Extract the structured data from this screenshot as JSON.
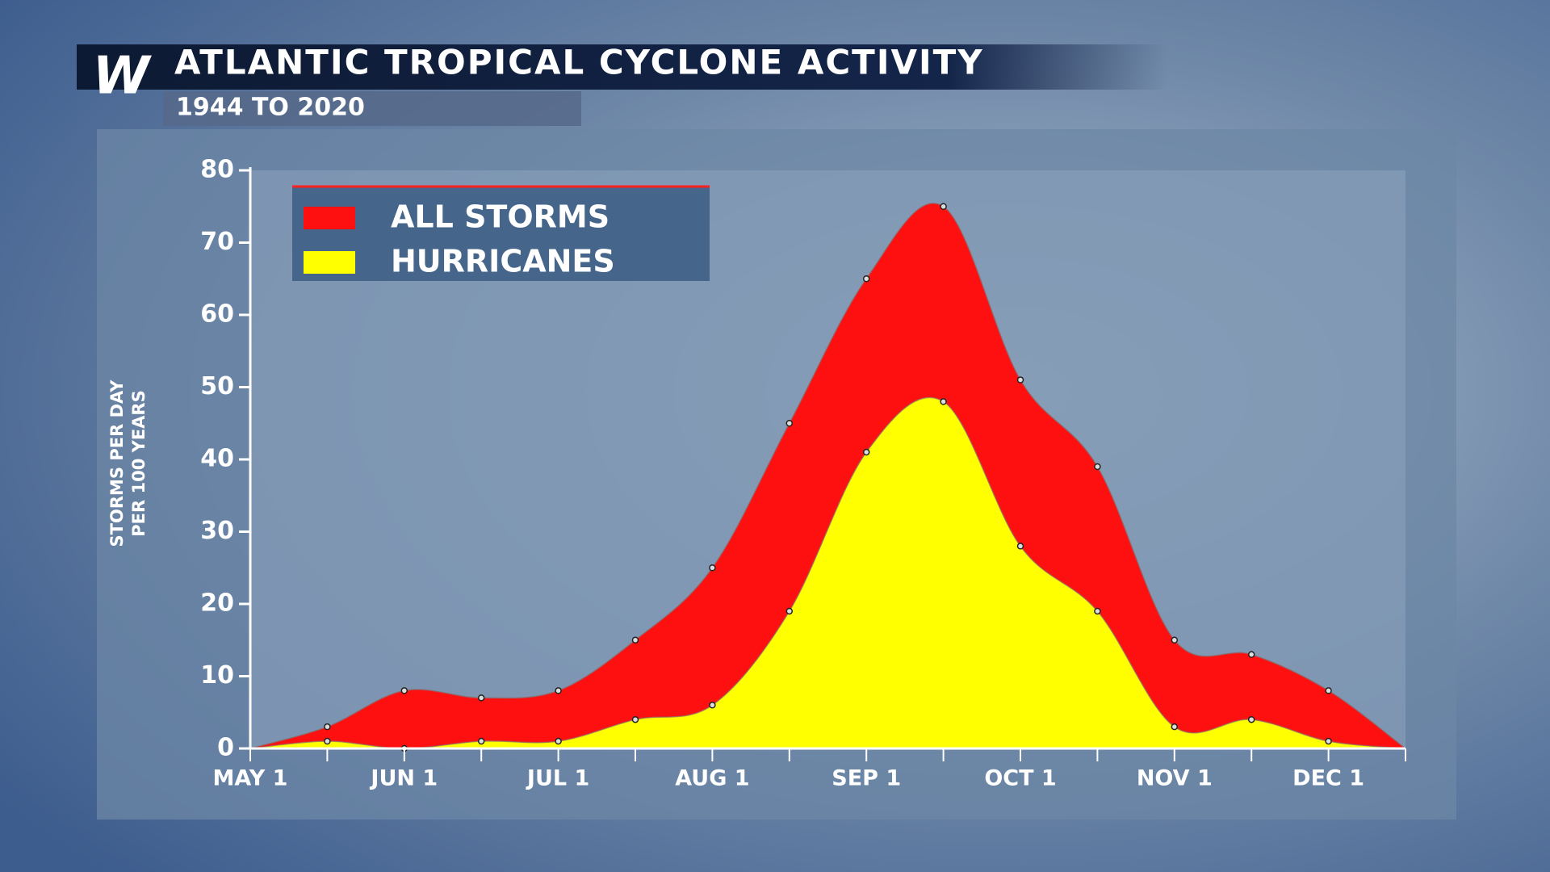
{
  "header": {
    "title": "ATLANTIC TROPICAL CYCLONE ACTIVITY",
    "subtitle": "1944 TO 2020",
    "logo": "W"
  },
  "chart_data": {
    "type": "area",
    "ylabel": [
      "STORMS PER DAY",
      "PER 100 YEARS"
    ],
    "categories": [
      "MAY 1",
      null,
      "JUN 1",
      null,
      "JUL 1",
      null,
      "AUG 1",
      null,
      "SEP 1",
      null,
      "OCT 1",
      null,
      "NOV 1",
      null,
      "DEC 1",
      null
    ],
    "series": [
      {
        "name": "ALL STORMS",
        "color": "#ff1010",
        "values": [
          0,
          3,
          8,
          7,
          8,
          15,
          25,
          45,
          65,
          75,
          51,
          39,
          15,
          13,
          8,
          0
        ]
      },
      {
        "name": "HURRICANES",
        "color": "#ffff00",
        "values": [
          0,
          1,
          0,
          1,
          1,
          4,
          6,
          19,
          41,
          48,
          28,
          19,
          3,
          4,
          1,
          0
        ]
      }
    ],
    "ylim": [
      0,
      80
    ],
    "yticks": [
      0,
      10,
      20,
      30,
      40,
      50,
      60,
      70,
      80
    ],
    "legend": "upper left"
  }
}
